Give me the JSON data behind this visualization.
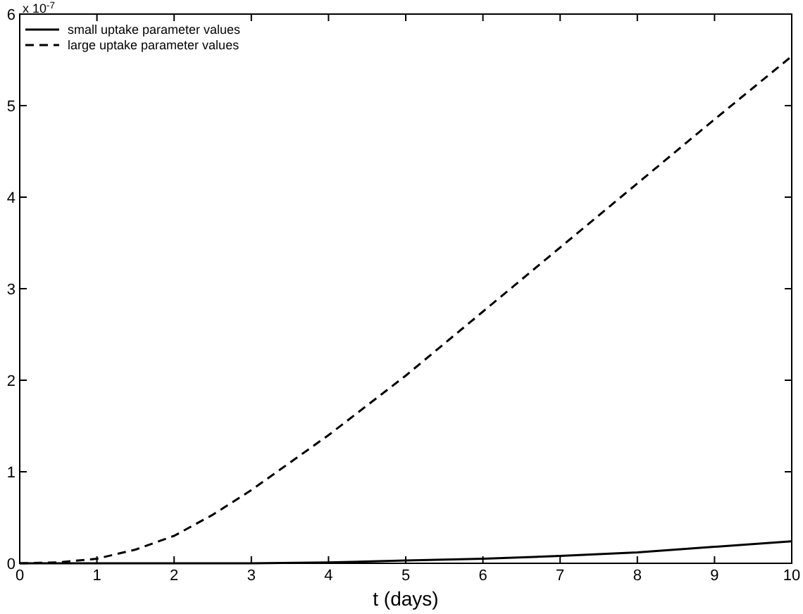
{
  "chart_data": {
    "type": "line",
    "xlabel": "t (days)",
    "annotations": [
      "x 10$^{-7}$"
    ],
    "xlim": [
      0,
      10
    ],
    "xticks": [
      0,
      1,
      2,
      3,
      4,
      5,
      6,
      7,
      8,
      9,
      10
    ],
    "ylim": [
      0,
      6
    ],
    "yticks": [
      0,
      1,
      2,
      3,
      4,
      5,
      6
    ],
    "grid": false,
    "legend": "top left",
    "series": [
      {
        "name": "small uptake parameter values",
        "color": "#000000",
        "line_style": "solid",
        "x": [
          0,
          1,
          2,
          3,
          4,
          5,
          6,
          7,
          8,
          9,
          10
        ],
        "values": [
          0,
          0,
          0,
          0,
          0.01,
          0.03,
          0.05,
          0.08,
          0.12,
          0.18,
          0.24
        ]
      },
      {
        "name": "large uptake parameter values",
        "color": "#000000",
        "line_style": "dashed",
        "x": [
          0,
          0.5,
          1,
          1.5,
          2,
          2.5,
          3,
          3.5,
          4,
          5,
          6,
          7,
          8,
          9,
          10
        ],
        "values": [
          0,
          0.01,
          0.05,
          0.15,
          0.3,
          0.53,
          0.8,
          1.1,
          1.4,
          2.05,
          2.75,
          3.45,
          4.15,
          4.85,
          5.54
        ]
      }
    ]
  }
}
